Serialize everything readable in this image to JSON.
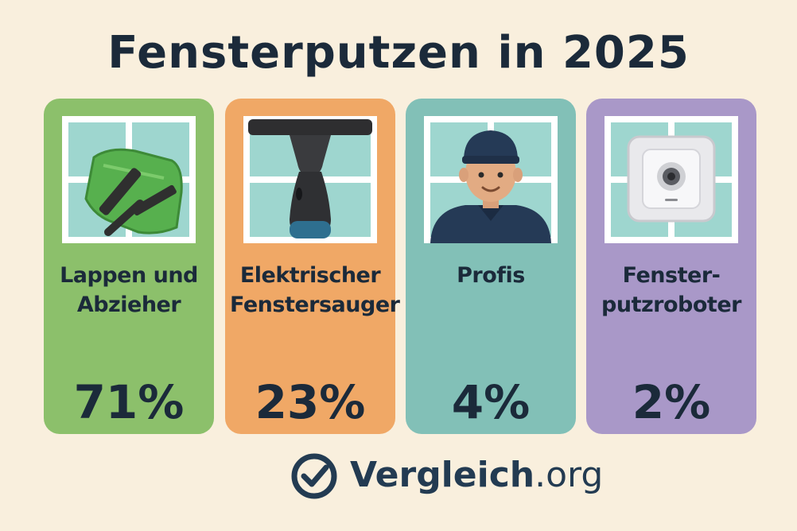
{
  "title": "Fensterputzen in 2025",
  "chart_data": {
    "type": "bar",
    "categories": [
      "Lappen und Abzieher",
      "Elektrischer Fenstersauger",
      "Profis",
      "Fenster-putzroboter"
    ],
    "values": [
      71,
      23,
      4,
      2
    ],
    "unit": "%",
    "title": "Fensterputzen in 2025"
  },
  "cards": [
    {
      "label_line1": "Lappen und",
      "label_line2": "Abzieher",
      "value": "71%",
      "color": "#8cc06b",
      "icon": "squeegee-cloth-icon"
    },
    {
      "label_line1": "Elektrischer",
      "label_line2": "Fenstersauger",
      "value": "23%",
      "color": "#f0a866",
      "icon": "window-vacuum-icon"
    },
    {
      "label_line1": "Profis",
      "label_line2": "",
      "value": "4%",
      "color": "#82c0b7",
      "icon": "professional-cleaner-icon"
    },
    {
      "label_line1": "Fenster-",
      "label_line2": "putzroboter",
      "value": "2%",
      "color": "#a998c8",
      "icon": "window-robot-icon"
    }
  ],
  "brand": {
    "name": "Vergleich",
    "tld": ".org",
    "icon": "check-circle-icon",
    "color": "#233b52"
  }
}
